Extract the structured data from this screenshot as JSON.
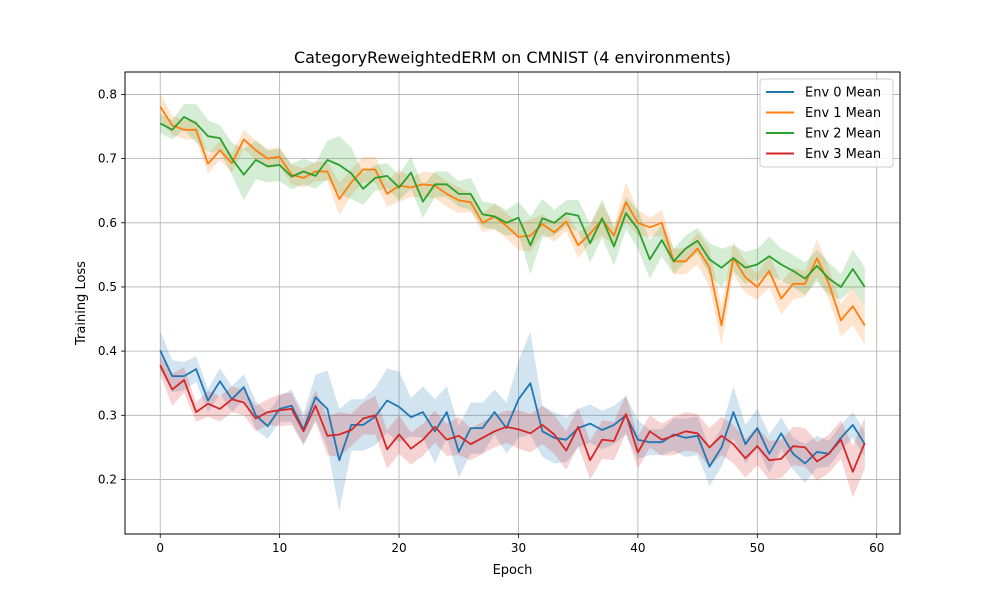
{
  "chart_data": {
    "type": "line",
    "title": "CategoryReweightedERM on CMNIST (4 environments)",
    "xlabel": "Epoch",
    "ylabel": "Training Loss",
    "xlim": [
      -2.95,
      61.95
    ],
    "ylim": [
      0.115,
      0.835
    ],
    "xticks": [
      0,
      10,
      20,
      30,
      40,
      50,
      60
    ],
    "xtick_labels": [
      "0",
      "10",
      "20",
      "30",
      "40",
      "50",
      "60"
    ],
    "yticks": [
      0.2,
      0.3,
      0.4,
      0.5,
      0.6,
      0.7,
      0.8
    ],
    "ytick_labels": [
      "0.2",
      "0.3",
      "0.4",
      "0.5",
      "0.6",
      "0.7",
      "0.8"
    ],
    "grid": true,
    "legend_position": "top-right",
    "x": [
      0,
      1,
      2,
      3,
      4,
      5,
      6,
      7,
      8,
      9,
      10,
      11,
      12,
      13,
      14,
      15,
      16,
      17,
      18,
      19,
      20,
      21,
      22,
      23,
      24,
      25,
      26,
      27,
      28,
      29,
      30,
      31,
      32,
      33,
      34,
      35,
      36,
      37,
      38,
      39,
      40,
      41,
      42,
      43,
      44,
      45,
      46,
      47,
      48,
      49,
      50,
      51,
      52,
      53,
      54,
      55,
      56,
      57,
      58,
      59
    ],
    "series": [
      {
        "name": "Env 0 Mean",
        "color": "#1f77b4",
        "values": [
          0.401,
          0.361,
          0.361,
          0.372,
          0.323,
          0.353,
          0.325,
          0.344,
          0.3,
          0.283,
          0.31,
          0.315,
          0.278,
          0.328,
          0.31,
          0.23,
          0.285,
          0.285,
          0.298,
          0.323,
          0.313,
          0.297,
          0.305,
          0.275,
          0.305,
          0.243,
          0.28,
          0.28,
          0.305,
          0.28,
          0.325,
          0.35,
          0.275,
          0.265,
          0.262,
          0.28,
          0.287,
          0.277,
          0.285,
          0.3,
          0.262,
          0.258,
          0.258,
          0.27,
          0.265,
          0.268,
          0.22,
          0.25,
          0.305,
          0.255,
          0.28,
          0.24,
          0.272,
          0.24,
          0.225,
          0.243,
          0.24,
          0.265,
          0.285,
          0.255
        ],
        "band": [
          0.03,
          0.025,
          0.022,
          0.02,
          0.018,
          0.02,
          0.02,
          0.02,
          0.022,
          0.02,
          0.02,
          0.025,
          0.025,
          0.035,
          0.06,
          0.08,
          0.04,
          0.04,
          0.045,
          0.05,
          0.055,
          0.03,
          0.04,
          0.05,
          0.04,
          0.04,
          0.04,
          0.04,
          0.035,
          0.04,
          0.06,
          0.08,
          0.04,
          0.04,
          0.035,
          0.03,
          0.03,
          0.03,
          0.03,
          0.03,
          0.03,
          0.02,
          0.02,
          0.025,
          0.03,
          0.03,
          0.03,
          0.03,
          0.04,
          0.03,
          0.03,
          0.03,
          0.025,
          0.025,
          0.03,
          0.025,
          0.02,
          0.02,
          0.02,
          0.02
        ]
      },
      {
        "name": "Env 1 Mean",
        "color": "#ff7f0e",
        "values": [
          0.781,
          0.752,
          0.745,
          0.745,
          0.692,
          0.713,
          0.693,
          0.73,
          0.713,
          0.7,
          0.703,
          0.675,
          0.67,
          0.68,
          0.68,
          0.637,
          0.663,
          0.683,
          0.683,
          0.645,
          0.658,
          0.655,
          0.66,
          0.658,
          0.645,
          0.635,
          0.632,
          0.6,
          0.61,
          0.595,
          0.578,
          0.58,
          0.598,
          0.585,
          0.602,
          0.565,
          0.583,
          0.605,
          0.58,
          0.632,
          0.6,
          0.593,
          0.6,
          0.54,
          0.54,
          0.56,
          0.53,
          0.44,
          0.545,
          0.515,
          0.5,
          0.525,
          0.482,
          0.505,
          0.505,
          0.545,
          0.505,
          0.448,
          0.47,
          0.44
        ],
        "band": [
          0.02,
          0.015,
          0.015,
          0.015,
          0.015,
          0.015,
          0.015,
          0.015,
          0.015,
          0.015,
          0.015,
          0.015,
          0.015,
          0.015,
          0.015,
          0.025,
          0.02,
          0.02,
          0.02,
          0.02,
          0.025,
          0.015,
          0.02,
          0.02,
          0.02,
          0.02,
          0.015,
          0.015,
          0.02,
          0.02,
          0.02,
          0.025,
          0.015,
          0.015,
          0.015,
          0.02,
          0.015,
          0.025,
          0.015,
          0.03,
          0.02,
          0.015,
          0.02,
          0.02,
          0.02,
          0.025,
          0.03,
          0.03,
          0.025,
          0.025,
          0.02,
          0.025,
          0.025,
          0.025,
          0.02,
          0.03,
          0.025,
          0.025,
          0.03,
          0.03
        ]
      },
      {
        "name": "Env 2 Mean",
        "color": "#2ca02c",
        "values": [
          0.755,
          0.745,
          0.765,
          0.755,
          0.735,
          0.732,
          0.7,
          0.675,
          0.698,
          0.688,
          0.69,
          0.672,
          0.68,
          0.673,
          0.698,
          0.69,
          0.677,
          0.653,
          0.67,
          0.673,
          0.655,
          0.678,
          0.633,
          0.66,
          0.66,
          0.645,
          0.645,
          0.613,
          0.61,
          0.6,
          0.608,
          0.565,
          0.607,
          0.6,
          0.615,
          0.611,
          0.568,
          0.607,
          0.563,
          0.615,
          0.59,
          0.543,
          0.573,
          0.54,
          0.56,
          0.572,
          0.543,
          0.53,
          0.545,
          0.53,
          0.535,
          0.548,
          0.535,
          0.525,
          0.513,
          0.533,
          0.513,
          0.5,
          0.528,
          0.5
        ],
        "band": [
          0.015,
          0.015,
          0.02,
          0.03,
          0.025,
          0.02,
          0.025,
          0.04,
          0.03,
          0.025,
          0.025,
          0.02,
          0.02,
          0.02,
          0.03,
          0.045,
          0.04,
          0.025,
          0.02,
          0.02,
          0.02,
          0.025,
          0.025,
          0.02,
          0.02,
          0.02,
          0.025,
          0.02,
          0.02,
          0.02,
          0.025,
          0.045,
          0.03,
          0.02,
          0.02,
          0.025,
          0.03,
          0.03,
          0.03,
          0.025,
          0.03,
          0.03,
          0.025,
          0.02,
          0.02,
          0.02,
          0.025,
          0.03,
          0.02,
          0.025,
          0.025,
          0.03,
          0.025,
          0.025,
          0.025,
          0.025,
          0.025,
          0.02,
          0.03,
          0.03
        ]
      },
      {
        "name": "Env 3 Mean",
        "color": "#d62728",
        "values": [
          0.378,
          0.34,
          0.355,
          0.305,
          0.318,
          0.31,
          0.325,
          0.32,
          0.295,
          0.305,
          0.308,
          0.31,
          0.275,
          0.315,
          0.268,
          0.27,
          0.277,
          0.295,
          0.3,
          0.247,
          0.27,
          0.248,
          0.262,
          0.282,
          0.262,
          0.268,
          0.255,
          0.265,
          0.275,
          0.282,
          0.278,
          0.272,
          0.285,
          0.27,
          0.245,
          0.282,
          0.23,
          0.262,
          0.26,
          0.302,
          0.242,
          0.275,
          0.262,
          0.268,
          0.275,
          0.272,
          0.25,
          0.268,
          0.255,
          0.233,
          0.252,
          0.23,
          0.232,
          0.252,
          0.25,
          0.228,
          0.24,
          0.262,
          0.212,
          0.257
        ],
        "band": [
          0.015,
          0.025,
          0.02,
          0.015,
          0.02,
          0.02,
          0.02,
          0.02,
          0.02,
          0.02,
          0.025,
          0.025,
          0.02,
          0.025,
          0.03,
          0.035,
          0.025,
          0.025,
          0.03,
          0.03,
          0.03,
          0.025,
          0.025,
          0.025,
          0.025,
          0.03,
          0.025,
          0.025,
          0.025,
          0.025,
          0.03,
          0.03,
          0.03,
          0.03,
          0.03,
          0.03,
          0.03,
          0.03,
          0.03,
          0.03,
          0.025,
          0.025,
          0.025,
          0.03,
          0.03,
          0.03,
          0.03,
          0.03,
          0.03,
          0.03,
          0.03,
          0.03,
          0.03,
          0.03,
          0.03,
          0.03,
          0.03,
          0.03,
          0.04,
          0.04
        ]
      }
    ]
  }
}
